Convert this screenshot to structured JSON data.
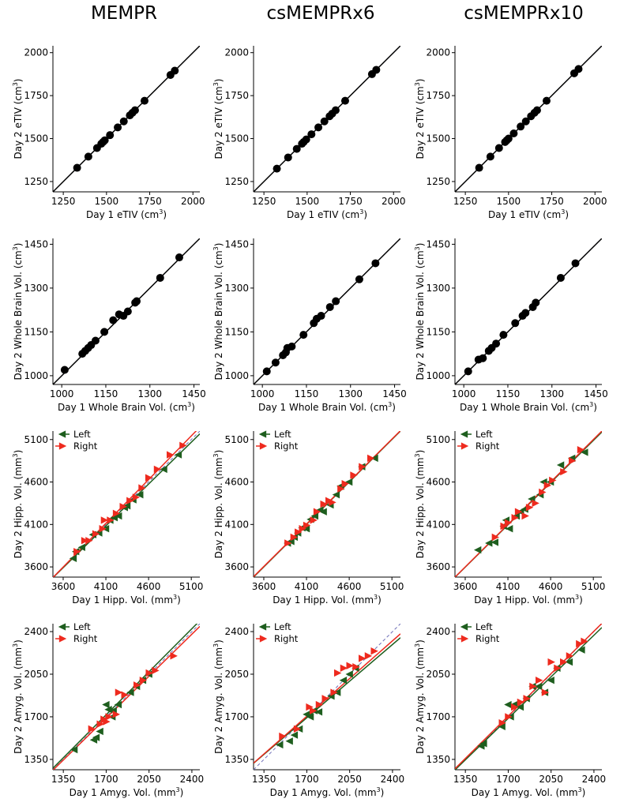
{
  "columns": [
    "MEMPR",
    "csMEMPRx6",
    "csMEMPRx10"
  ],
  "colors": {
    "left": "#1e5e1e",
    "right": "#ee2a1e",
    "black": "#000000",
    "identity": "#7070b8"
  },
  "legend": {
    "left": "Left",
    "right": "Right"
  },
  "chart_data": [
    {
      "id": "etiv-mempr",
      "row": 0,
      "col": 0,
      "type": "scatter",
      "xlabel": "Day 1 eTIV",
      "ylabel": "Day 2 eTIV",
      "unit": "cm",
      "unit_exp": "3",
      "xlim": [
        1190,
        2040
      ],
      "ylim": [
        1190,
        2040
      ],
      "xticks": [
        1250,
        1500,
        1750,
        2000
      ],
      "yticks": [
        1250,
        1500,
        1750,
        2000
      ],
      "series": [
        {
          "name": "eTIV",
          "color": "black",
          "marker": "circle",
          "x": [
            1330,
            1395,
            1445,
            1470,
            1480,
            1490,
            1520,
            1565,
            1600,
            1635,
            1650,
            1665,
            1720,
            1870,
            1895
          ],
          "y": [
            1330,
            1395,
            1445,
            1470,
            1480,
            1490,
            1520,
            1565,
            1600,
            1635,
            1650,
            1665,
            1720,
            1870,
            1895
          ],
          "fit": [
            1.0,
            0.0
          ]
        }
      ]
    },
    {
      "id": "etiv-x6",
      "row": 0,
      "col": 1,
      "type": "scatter",
      "xlabel": "Day 1 eTIV",
      "ylabel": "Day 2 eTIV",
      "unit": "cm",
      "unit_exp": "3",
      "xlim": [
        1190,
        2040
      ],
      "ylim": [
        1190,
        2040
      ],
      "xticks": [
        1250,
        1500,
        1750,
        2000
      ],
      "yticks": [
        1250,
        1500,
        1750,
        2000
      ],
      "series": [
        {
          "name": "eTIV",
          "color": "black",
          "marker": "circle",
          "x": [
            1325,
            1390,
            1440,
            1470,
            1480,
            1495,
            1525,
            1565,
            1600,
            1630,
            1645,
            1665,
            1720,
            1875,
            1900
          ],
          "y": [
            1325,
            1390,
            1440,
            1470,
            1480,
            1495,
            1525,
            1565,
            1600,
            1630,
            1645,
            1665,
            1720,
            1875,
            1900
          ],
          "fit": [
            1.0,
            0.0
          ]
        }
      ]
    },
    {
      "id": "etiv-x10",
      "row": 0,
      "col": 2,
      "type": "scatter",
      "xlabel": "Day 1 eTIV",
      "ylabel": "Day 2 eTIV",
      "unit": "cm",
      "unit_exp": "3",
      "xlim": [
        1190,
        2040
      ],
      "ylim": [
        1190,
        2040
      ],
      "xticks": [
        1250,
        1500,
        1750,
        2000
      ],
      "yticks": [
        1250,
        1500,
        1750,
        2000
      ],
      "series": [
        {
          "name": "eTIV",
          "color": "black",
          "marker": "circle",
          "x": [
            1330,
            1395,
            1445,
            1480,
            1490,
            1500,
            1530,
            1570,
            1600,
            1630,
            1650,
            1665,
            1720,
            1880,
            1905
          ],
          "y": [
            1330,
            1395,
            1445,
            1480,
            1490,
            1500,
            1530,
            1570,
            1600,
            1630,
            1650,
            1665,
            1720,
            1880,
            1905
          ],
          "fit": [
            1.0,
            0.0
          ]
        }
      ]
    },
    {
      "id": "wbv-mempr",
      "row": 1,
      "col": 0,
      "type": "scatter",
      "xlabel": "Day 1 Whole Brain Vol.",
      "ylabel": "Day 2 Whole Brain Vol.",
      "unit": "cm",
      "unit_exp": "3",
      "xlim": [
        970,
        1470
      ],
      "ylim": [
        970,
        1470
      ],
      "xticks": [
        1000,
        1150,
        1300,
        1450
      ],
      "yticks": [
        1000,
        1150,
        1300,
        1450
      ],
      "series": [
        {
          "name": "WBV",
          "color": "black",
          "marker": "circle",
          "x": [
            1010,
            1070,
            1080,
            1090,
            1100,
            1115,
            1145,
            1175,
            1195,
            1210,
            1225,
            1250,
            1255,
            1335,
            1400
          ],
          "y": [
            1020,
            1075,
            1085,
            1095,
            1105,
            1120,
            1150,
            1190,
            1210,
            1205,
            1220,
            1250,
            1255,
            1335,
            1405
          ],
          "fit": [
            1.0,
            0.0
          ]
        }
      ]
    },
    {
      "id": "wbv-x6",
      "row": 1,
      "col": 1,
      "type": "scatter",
      "xlabel": "Day 1 Whole Brain Vol.",
      "ylabel": "Day 2 Whole Brain Vol.",
      "unit": "cm",
      "unit_exp": "3",
      "xlim": [
        970,
        1470
      ],
      "ylim": [
        970,
        1470
      ],
      "xticks": [
        1000,
        1150,
        1300,
        1450
      ],
      "yticks": [
        1000,
        1150,
        1300,
        1450
      ],
      "series": [
        {
          "name": "WBV",
          "color": "black",
          "marker": "circle",
          "x": [
            1015,
            1045,
            1070,
            1080,
            1085,
            1100,
            1140,
            1175,
            1185,
            1200,
            1230,
            1250,
            1330,
            1385
          ],
          "y": [
            1015,
            1045,
            1070,
            1080,
            1095,
            1100,
            1140,
            1180,
            1195,
            1205,
            1235,
            1255,
            1330,
            1385
          ],
          "fit": [
            1.0,
            0.0
          ]
        }
      ]
    },
    {
      "id": "wbv-x10",
      "row": 1,
      "col": 2,
      "type": "scatter",
      "xlabel": "Day 1 Whole Brain Vol.",
      "ylabel": "Day 2 Whole Brain Vol.",
      "unit": "cm",
      "unit_exp": "3",
      "xlim": [
        970,
        1470
      ],
      "ylim": [
        970,
        1470
      ],
      "xticks": [
        1000,
        1150,
        1300,
        1450
      ],
      "yticks": [
        1000,
        1150,
        1300,
        1450
      ],
      "series": [
        {
          "name": "WBV",
          "color": "black",
          "marker": "circle",
          "x": [
            1015,
            1050,
            1065,
            1085,
            1095,
            1110,
            1135,
            1175,
            1200,
            1210,
            1235,
            1245,
            1330,
            1380
          ],
          "y": [
            1015,
            1055,
            1060,
            1085,
            1095,
            1110,
            1140,
            1180,
            1205,
            1215,
            1235,
            1250,
            1335,
            1385
          ],
          "fit": [
            1.0,
            0.0
          ]
        }
      ]
    },
    {
      "id": "hipp-mempr",
      "row": 2,
      "col": 0,
      "type": "scatter",
      "legend": true,
      "xlabel": "Day 1 Hipp. Vol.",
      "ylabel": "Day 2 Hipp. Vol.",
      "unit": "mm",
      "unit_exp": "3",
      "xlim": [
        3480,
        5200
      ],
      "ylim": [
        3480,
        5200
      ],
      "xticks": [
        3600,
        4100,
        4600,
        5100
      ],
      "yticks": [
        3600,
        4100,
        4600,
        5100
      ],
      "series": [
        {
          "name": "Left",
          "color": "left",
          "marker": "tri-left",
          "x": [
            3720,
            3750,
            3820,
            3950,
            4020,
            4100,
            4150,
            4200,
            4250,
            4320,
            4350,
            4420,
            4500,
            4780,
            4950
          ],
          "y": [
            3700,
            3780,
            3830,
            3980,
            4000,
            4050,
            4150,
            4180,
            4200,
            4300,
            4320,
            4390,
            4450,
            4750,
            4920
          ],
          "fit": [
            0.985,
            45
          ]
        },
        {
          "name": "Right",
          "color": "right",
          "marker": "tri-right",
          "x": [
            3760,
            3850,
            3900,
            3980,
            4060,
            4080,
            4150,
            4220,
            4300,
            4380,
            4450,
            4520,
            4600,
            4700,
            4850,
            5000
          ],
          "y": [
            3780,
            3910,
            3910,
            3990,
            4050,
            4150,
            4150,
            4230,
            4310,
            4380,
            4420,
            4530,
            4650,
            4750,
            4920,
            5030
          ],
          "fit": [
            1.03,
            -110
          ]
        }
      ]
    },
    {
      "id": "hipp-x6",
      "row": 2,
      "col": 1,
      "type": "scatter",
      "legend": true,
      "xlabel": "Day 1 Hipp. Vol.",
      "ylabel": "Day 2 Hipp. Vol.",
      "unit": "mm",
      "unit_exp": "3",
      "xlim": [
        3480,
        5200
      ],
      "ylim": [
        3480,
        5200
      ],
      "xticks": [
        3600,
        4100,
        4600,
        5100
      ],
      "yticks": [
        3600,
        4100,
        4600,
        5100
      ],
      "series": [
        {
          "name": "Left",
          "color": "left",
          "marker": "tri-left",
          "x": [
            3880,
            3920,
            3960,
            4000,
            4050,
            4100,
            4150,
            4200,
            4260,
            4300,
            4380,
            4450,
            4500,
            4600,
            4750,
            4900
          ],
          "y": [
            3880,
            3900,
            3950,
            4000,
            4060,
            4050,
            4160,
            4200,
            4270,
            4250,
            4330,
            4450,
            4550,
            4600,
            4780,
            4880
          ],
          "fit": [
            1.0,
            0
          ]
        },
        {
          "name": "Right",
          "color": "right",
          "marker": "tri-right",
          "x": [
            3880,
            3950,
            4000,
            4050,
            4100,
            4180,
            4220,
            4300,
            4360,
            4400,
            4500,
            4550,
            4650,
            4750,
            4850
          ],
          "y": [
            3880,
            3950,
            4010,
            4050,
            4090,
            4150,
            4250,
            4340,
            4380,
            4360,
            4520,
            4580,
            4680,
            4780,
            4880
          ],
          "fit": [
            1.0,
            5
          ]
        }
      ]
    },
    {
      "id": "hipp-x10",
      "row": 2,
      "col": 2,
      "type": "scatter",
      "legend": true,
      "xlabel": "Day 1 Hipp. Vol.",
      "ylabel": "Day 2 Hipp. Vol.",
      "unit": "mm",
      "unit_exp": "3",
      "xlim": [
        3480,
        5200
      ],
      "ylim": [
        3480,
        5200
      ],
      "xticks": [
        3600,
        4100,
        4600,
        5100
      ],
      "yticks": [
        3600,
        4100,
        4600,
        5100
      ],
      "series": [
        {
          "name": "Left",
          "color": "left",
          "marker": "tri-left",
          "x": [
            3750,
            3880,
            3950,
            4050,
            4080,
            4120,
            4200,
            4250,
            4300,
            4380,
            4480,
            4520,
            4600,
            4720,
            4850,
            5000
          ],
          "y": [
            3800,
            3880,
            3890,
            4080,
            4150,
            4050,
            4200,
            4250,
            4280,
            4400,
            4450,
            4600,
            4600,
            4800,
            4880,
            4950
          ],
          "fit": [
            0.995,
            15
          ]
        },
        {
          "name": "Right",
          "color": "right",
          "marker": "tri-right",
          "x": [
            3950,
            4050,
            4100,
            4180,
            4220,
            4300,
            4350,
            4420,
            4500,
            4560,
            4620,
            4750,
            4850,
            4950
          ],
          "y": [
            3950,
            4080,
            4120,
            4180,
            4250,
            4200,
            4300,
            4350,
            4480,
            4560,
            4620,
            4720,
            4850,
            4980
          ],
          "fit": [
            1.0,
            0
          ]
        }
      ]
    },
    {
      "id": "amyg-mempr",
      "row": 3,
      "col": 0,
      "type": "scatter",
      "legend": true,
      "xlabel": "Day 1 Amyg. Vol.",
      "ylabel": "Day 2 Amyg. Vol.",
      "unit": "mm",
      "unit_exp": "3",
      "xlim": [
        1265,
        2465
      ],
      "ylim": [
        1265,
        2465
      ],
      "xticks": [
        1350,
        1700,
        2050,
        2400
      ],
      "yticks": [
        1350,
        1700,
        2050,
        2400
      ],
      "series": [
        {
          "name": "Left",
          "color": "left",
          "marker": "tri-left",
          "x": [
            1440,
            1600,
            1620,
            1650,
            1700,
            1720,
            1750,
            1760,
            1800,
            1900,
            1950,
            2000,
            2050
          ],
          "y": [
            1430,
            1510,
            1530,
            1580,
            1800,
            1760,
            1700,
            1750,
            1800,
            1900,
            1950,
            2000,
            2050
          ],
          "fit": [
            1.01,
            0
          ]
        },
        {
          "name": "Right",
          "color": "right",
          "marker": "tri-right",
          "x": [
            1580,
            1650,
            1680,
            1700,
            1720,
            1780,
            1800,
            1850,
            1950,
            2000,
            2050,
            2100,
            2250
          ],
          "y": [
            1600,
            1640,
            1680,
            1660,
            1700,
            1720,
            1900,
            1880,
            1960,
            2000,
            2060,
            2080,
            2200
          ],
          "fit": [
            0.985,
            15
          ]
        }
      ]
    },
    {
      "id": "amyg-x6",
      "row": 3,
      "col": 1,
      "type": "scatter",
      "legend": true,
      "xlabel": "Day 1 Amyg. Vol.",
      "ylabel": "Day 2 Amyg. Vol.",
      "unit": "mm",
      "unit_exp": "3",
      "xlim": [
        1265,
        2465
      ],
      "ylim": [
        1265,
        2465
      ],
      "xticks": [
        1350,
        1700,
        2050,
        2400
      ],
      "yticks": [
        1350,
        1700,
        2050,
        2400
      ],
      "series": [
        {
          "name": "Left",
          "color": "left",
          "marker": "tri-left",
          "x": [
            1480,
            1560,
            1600,
            1640,
            1700,
            1730,
            1760,
            1800,
            1900,
            1950,
            2000,
            2050,
            2100
          ],
          "y": [
            1470,
            1500,
            1550,
            1600,
            1720,
            1700,
            1750,
            1740,
            1870,
            1900,
            2000,
            2050,
            2100
          ],
          "fit": [
            0.86,
            230
          ]
        },
        {
          "name": "Right",
          "color": "right",
          "marker": "tri-right",
          "x": [
            1500,
            1620,
            1720,
            1750,
            1800,
            1850,
            1920,
            1950,
            2000,
            2050,
            2100,
            2150,
            2200,
            2250
          ],
          "y": [
            1540,
            1600,
            1780,
            1750,
            1800,
            1850,
            1900,
            2060,
            2100,
            2120,
            2110,
            2180,
            2200,
            2240
          ],
          "fit": [
            0.885,
            200
          ]
        }
      ]
    },
    {
      "id": "amyg-x10",
      "row": 3,
      "col": 2,
      "type": "scatter",
      "legend": true,
      "xlabel": "Day 1 Amyg. Vol.",
      "ylabel": "Day 2 Amyg. Vol.",
      "unit": "mm",
      "unit_exp": "3",
      "xlim": [
        1265,
        2465
      ],
      "ylim": [
        1265,
        2465
      ],
      "xticks": [
        1350,
        1700,
        2050,
        2400
      ],
      "yticks": [
        1350,
        1700,
        2050,
        2400
      ],
      "series": [
        {
          "name": "Left",
          "color": "left",
          "marker": "tri-left",
          "x": [
            1480,
            1500,
            1650,
            1700,
            1720,
            1750,
            1800,
            1850,
            1900,
            1950,
            2000,
            2050,
            2100,
            2200,
            2300
          ],
          "y": [
            1460,
            1480,
            1620,
            1800,
            1700,
            1800,
            1780,
            1850,
            1950,
            1950,
            1900,
            2000,
            2100,
            2150,
            2250
          ],
          "fit": [
            0.975,
            30
          ]
        },
        {
          "name": "Right",
          "color": "right",
          "marker": "tri-right",
          "x": [
            1650,
            1700,
            1750,
            1800,
            1850,
            1900,
            1950,
            2000,
            2050,
            2100,
            2150,
            2200,
            2280,
            2320
          ],
          "y": [
            1650,
            1700,
            1780,
            1820,
            1850,
            1950,
            2000,
            1900,
            2150,
            2100,
            2150,
            2200,
            2300,
            2320
          ],
          "fit": [
            0.995,
            15
          ]
        }
      ]
    }
  ]
}
